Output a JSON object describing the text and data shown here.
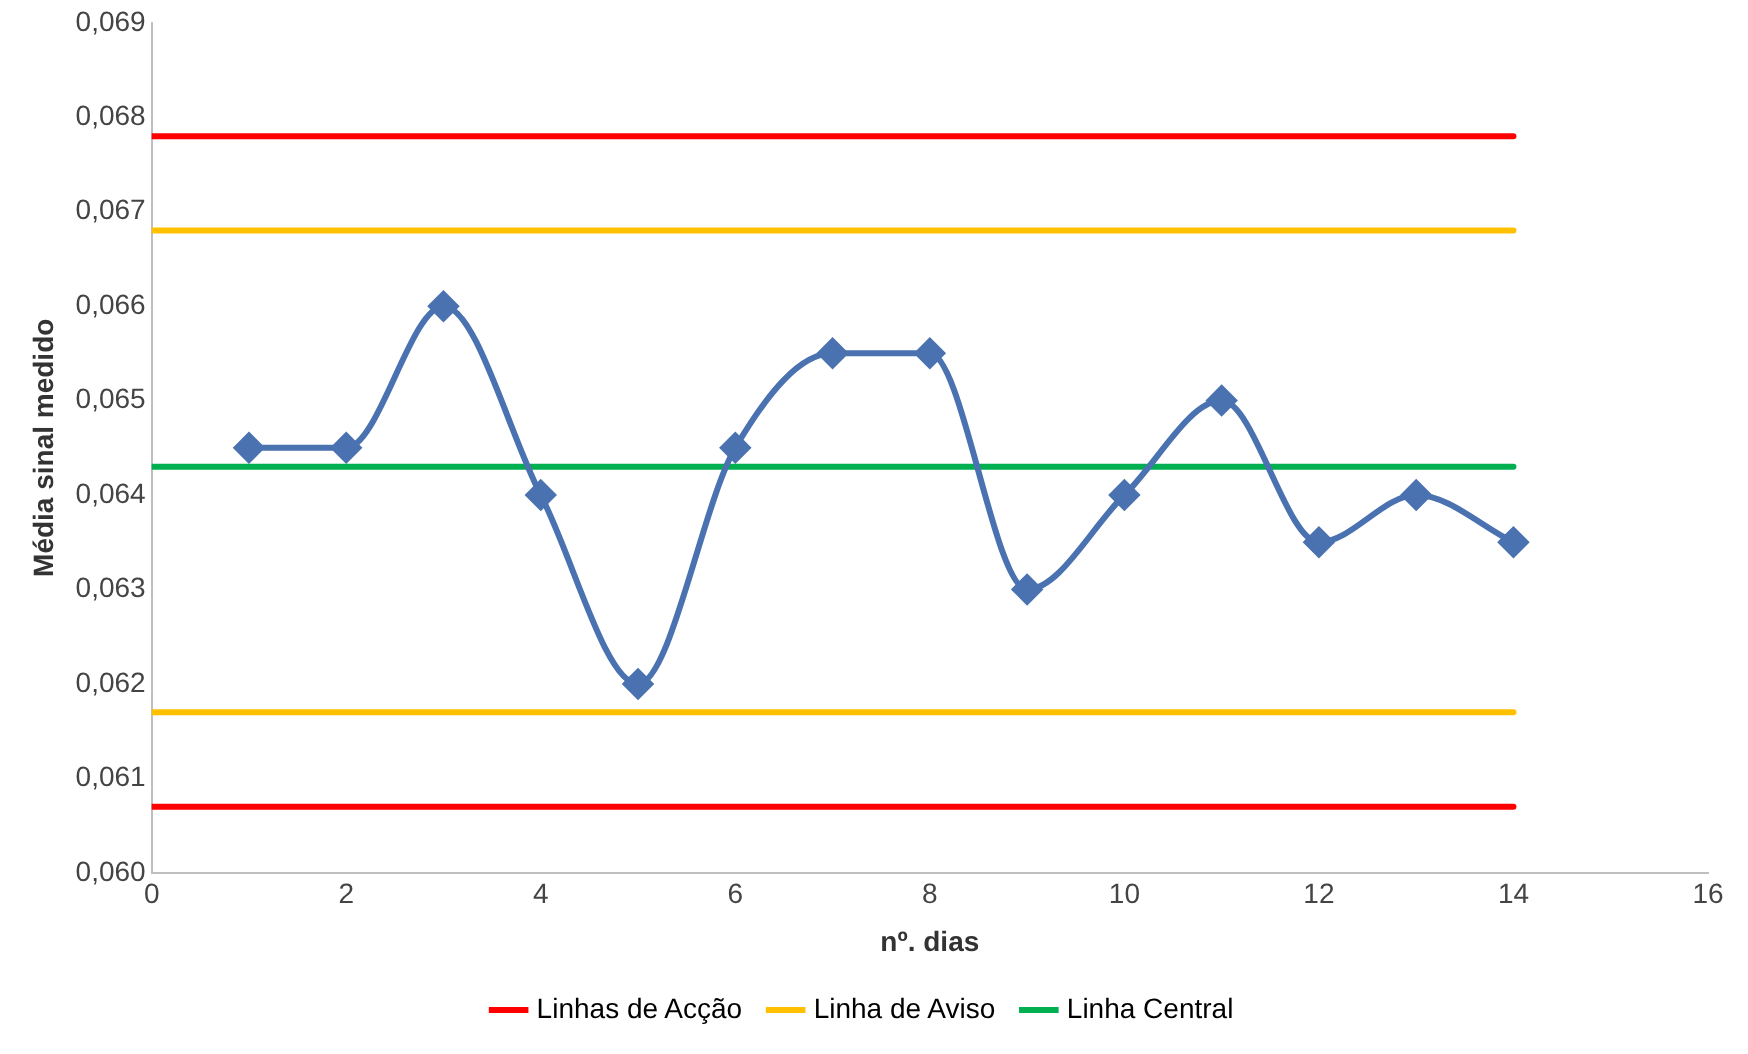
{
  "chart_data": {
    "type": "line",
    "xlabel": "nº. dias",
    "ylabel": "Média sinal medido",
    "xlim": [
      0,
      16
    ],
    "xticks": [
      0,
      2,
      4,
      6,
      8,
      10,
      12,
      14,
      16
    ],
    "ylim": [
      0.06,
      0.069
    ],
    "yticks": [
      {
        "value": 0.06,
        "label": "0,060"
      },
      {
        "value": 0.061,
        "label": "0,061"
      },
      {
        "value": 0.062,
        "label": "0,062"
      },
      {
        "value": 0.063,
        "label": "0,063"
      },
      {
        "value": 0.064,
        "label": "0,064"
      },
      {
        "value": 0.065,
        "label": "0,065"
      },
      {
        "value": 0.066,
        "label": "0,066"
      },
      {
        "value": 0.067,
        "label": "0,067"
      },
      {
        "value": 0.068,
        "label": "0,068"
      },
      {
        "value": 0.069,
        "label": "0,069"
      }
    ],
    "grid": false,
    "legend": "bottom",
    "series": [
      {
        "color": "#4a72b0",
        "marker": "diamond",
        "x": [
          1,
          2,
          3,
          4,
          5,
          6,
          7,
          8,
          9,
          10,
          11,
          12,
          13,
          14
        ],
        "values": [
          0.0645,
          0.0645,
          0.066,
          0.064,
          0.062,
          0.0645,
          0.0655,
          0.0655,
          0.063,
          0.064,
          0.065,
          0.0635,
          0.064,
          0.0635
        ]
      },
      {
        "name": "Linhas de Acção",
        "color": "#ff0000",
        "marker": "none",
        "x": [
          0,
          14
        ],
        "values": [
          0.0678,
          0.0678
        ]
      },
      {
        "color": "#ff0000",
        "marker": "none",
        "x": [
          0,
          14
        ],
        "values": [
          0.0607,
          0.0607
        ]
      },
      {
        "name": "Linha de Aviso",
        "color": "#ffc000",
        "marker": "none",
        "x": [
          0,
          14
        ],
        "values": [
          0.0668,
          0.0668
        ]
      },
      {
        "color": "#ffc000",
        "marker": "none",
        "x": [
          0,
          14
        ],
        "values": [
          0.0617,
          0.0617
        ]
      },
      {
        "name": "Linha Central",
        "color": "#00b050",
        "marker": "none",
        "x": [
          0,
          14
        ],
        "values": [
          0.0643,
          0.0643
        ]
      }
    ]
  }
}
